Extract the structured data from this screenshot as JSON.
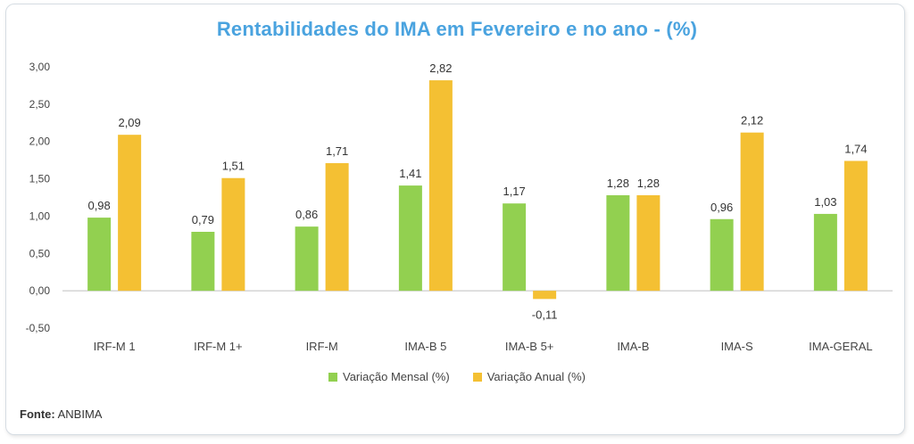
{
  "chart_data": {
    "type": "bar",
    "title": "Rentabilidades do IMA em Fevereiro e no ano - (%)",
    "categories": [
      "IRF-M 1",
      "IRF-M 1+",
      "IRF-M",
      "IMA-B 5",
      "IMA-B 5+",
      "IMA-B",
      "IMA-S",
      "IMA-GERAL"
    ],
    "series": [
      {
        "name": "Variação Mensal (%)",
        "color": "#92d050",
        "values": [
          0.98,
          0.79,
          0.86,
          1.41,
          1.17,
          1.28,
          0.96,
          1.03
        ],
        "labels": [
          "0,98",
          "0,79",
          "0,86",
          "1,41",
          "1,17",
          "1,28",
          "0,96",
          "1,03"
        ]
      },
      {
        "name": "Variação Anual (%)",
        "color": "#f4c033",
        "values": [
          2.09,
          1.51,
          1.71,
          2.82,
          -0.11,
          1.28,
          2.12,
          1.74
        ],
        "labels": [
          "2,09",
          "1,51",
          "1,71",
          "2,82",
          "-0,11",
          "1,28",
          "2,12",
          "1,74"
        ]
      }
    ],
    "ylim": [
      -0.5,
      3.0
    ],
    "yticks": [
      3.0,
      2.5,
      2.0,
      1.5,
      1.0,
      0.5,
      0.0,
      -0.5
    ],
    "ytick_labels": [
      "3,00",
      "2,50",
      "2,00",
      "1,50",
      "1,00",
      "0,50",
      "0,00",
      "-0,50"
    ],
    "xlabel": "",
    "ylabel": "",
    "legend_position": "bottom"
  },
  "source": {
    "label": "Fonte:",
    "value": "ANBIMA"
  }
}
